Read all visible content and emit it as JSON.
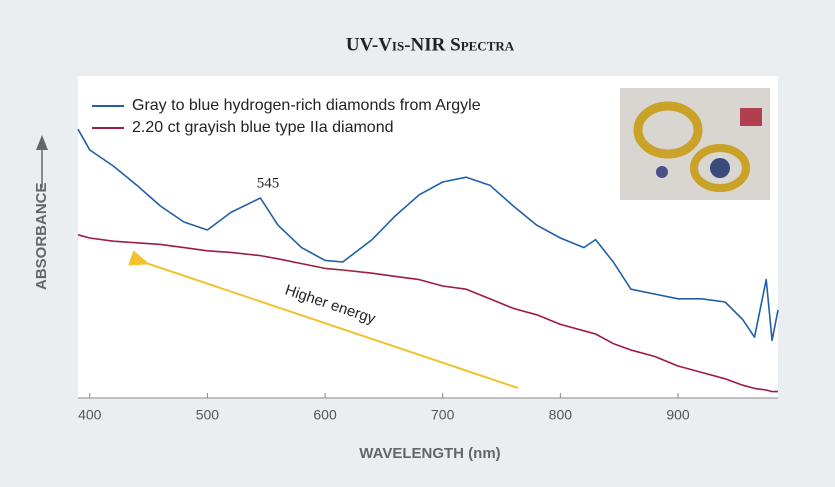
{
  "chart_data": {
    "type": "line",
    "title": "UV-Vis-NIR Spectra",
    "x_label": "WAVELENGTH (nm)",
    "y_label": "ABSORBANCE",
    "x": [
      390,
      400,
      420,
      440,
      460,
      480,
      500,
      520,
      545,
      560,
      580,
      600,
      615,
      640,
      660,
      680,
      700,
      720,
      740,
      760,
      780,
      800,
      820,
      830,
      845,
      860,
      880,
      900,
      920,
      940,
      955,
      965,
      975,
      980,
      985
    ],
    "series": [
      {
        "name": "Gray to blue hydrogen-rich diamonds from Argyle",
        "color": "#1f5fa8",
        "values": [
          84,
          77.5,
          72.5,
          66.5,
          60,
          55,
          52.5,
          58,
          62.5,
          54,
          47,
          43,
          42.5,
          49.5,
          57,
          63.5,
          67.5,
          69,
          66.5,
          60,
          54,
          50,
          47,
          49.5,
          42.5,
          34,
          32.5,
          31,
          31,
          30,
          24.5,
          19,
          37,
          18,
          27.5
        ]
      },
      {
        "name": "2.20 ct grayish blue type IIa diamond",
        "color": "#9b1d3f",
        "values": [
          51,
          50,
          49,
          48.5,
          48,
          47,
          46,
          45.5,
          44.5,
          43.5,
          42,
          40.5,
          40,
          39,
          38,
          37,
          35,
          34,
          31,
          28,
          26,
          23,
          21,
          20,
          17,
          15,
          13,
          10,
          8,
          6,
          4,
          3,
          2.5,
          2,
          2
        ]
      }
    ],
    "annotations": [
      "545",
      "Higher energy"
    ],
    "xlim": [
      390,
      985
    ],
    "xticks": [
      400,
      500,
      600,
      700,
      800,
      900
    ],
    "ylim": [
      0,
      100
    ]
  }
}
